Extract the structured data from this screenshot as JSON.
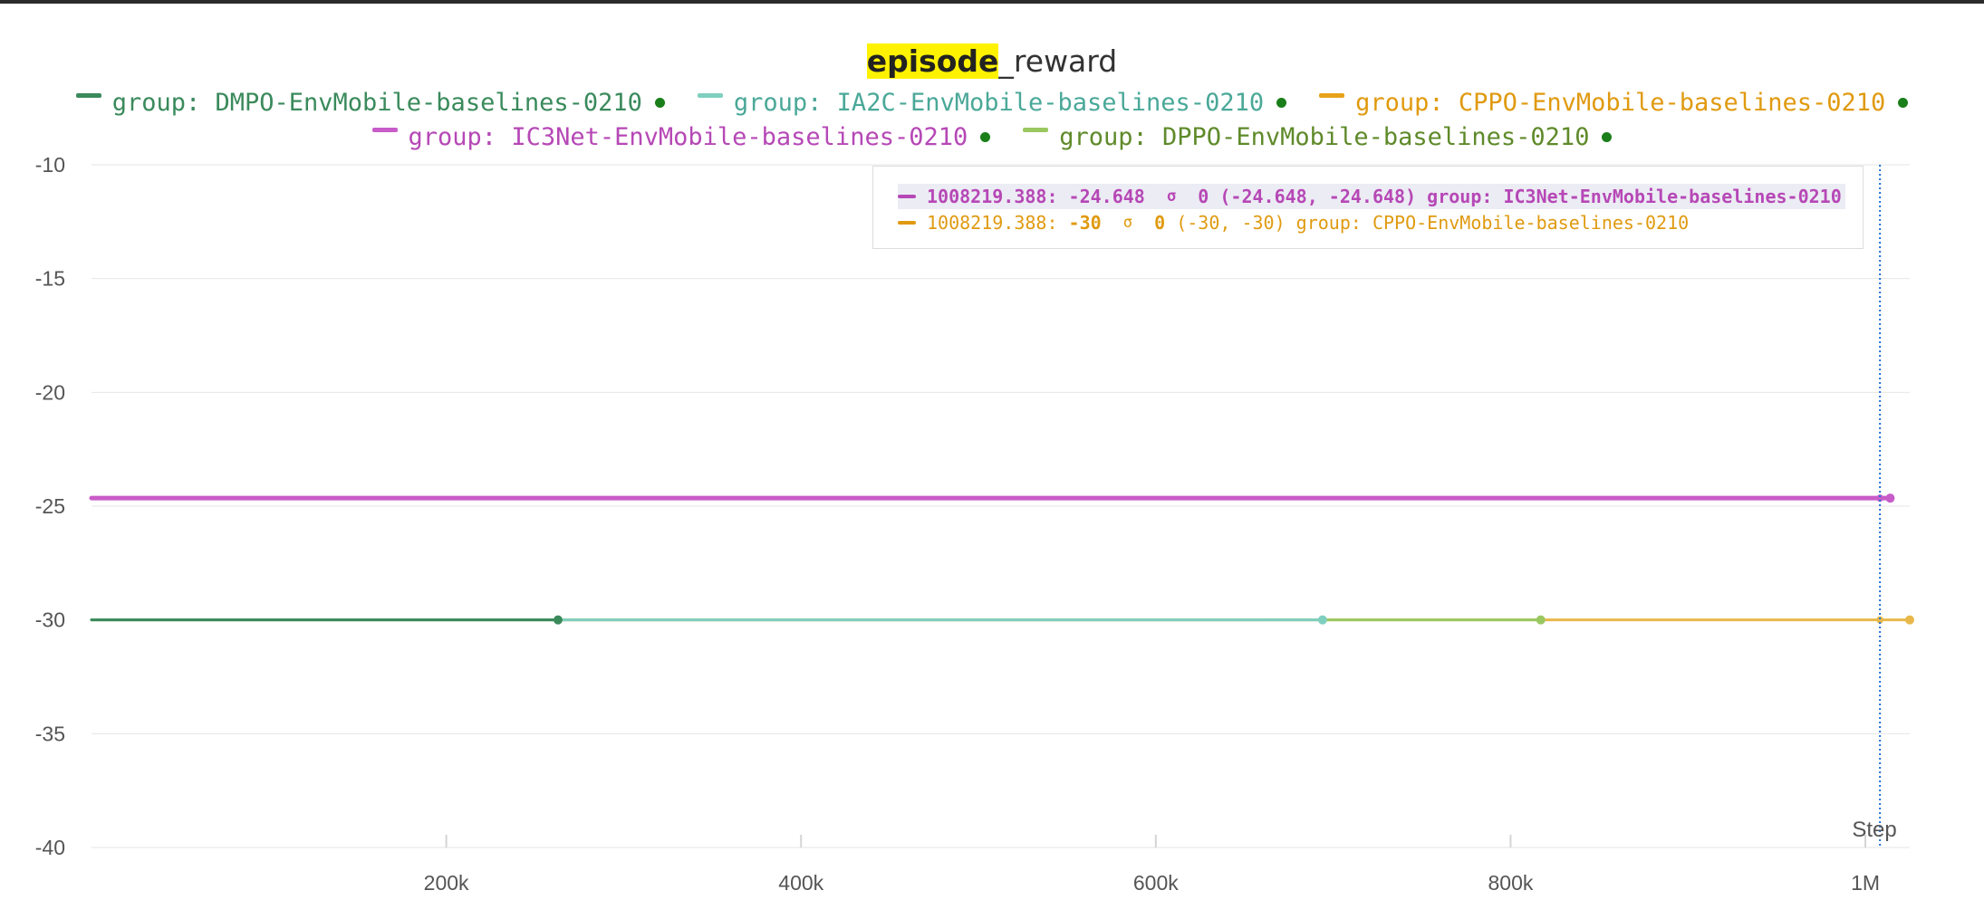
{
  "title": {
    "highlight": "episode",
    "rest": "_reward"
  },
  "legend": {
    "row1": [
      {
        "label": "group: DMPO-EnvMobile-baselines-0210",
        "color": "#3a8a5c"
      },
      {
        "label": "group: IA2C-EnvMobile-baselines-0210",
        "color": "#7fcfc0"
      },
      {
        "label": "group: CPPO-EnvMobile-baselines-0210",
        "color": "#e8a21a"
      }
    ],
    "row2": [
      {
        "label": "group: IC3Net-EnvMobile-baselines-0210",
        "color": "#c85cc8"
      },
      {
        "label": "group: DPPO-EnvMobile-baselines-0210",
        "color": "#9ac860"
      }
    ]
  },
  "tooltip": {
    "rows": [
      {
        "step": "1008219.388:",
        "value": "-24.648",
        "sigma": "σ",
        "sigma_value": "0",
        "range": "(-24.648, -24.648)",
        "group": "group: IC3Net-EnvMobile-baselines-0210",
        "color": "#b648b6",
        "highlighted": true
      },
      {
        "step": "1008219.388:",
        "value": "-30",
        "sigma": "σ",
        "sigma_value": "0",
        "range": "(-30, -30)",
        "group": "group: CPPO-EnvMobile-baselines-0210",
        "color": "#e09a10",
        "highlighted": false
      }
    ]
  },
  "axis": {
    "xlabel": "Step"
  },
  "chart_data": {
    "type": "line",
    "title": "episode_reward",
    "xlabel": "Step",
    "ylabel": "",
    "xlim": [
      0,
      1025000
    ],
    "ylim": [
      -40,
      -10
    ],
    "yticks": [
      -10,
      -15,
      -20,
      -25,
      -30,
      -35,
      -40
    ],
    "xticks": [
      {
        "value": 200000,
        "label": "200k"
      },
      {
        "value": 400000,
        "label": "400k"
      },
      {
        "value": 600000,
        "label": "600k"
      },
      {
        "value": 800000,
        "label": "800k"
      },
      {
        "value": 1000000,
        "label": "1M"
      }
    ],
    "grid": true,
    "hover_x": 1008219.388,
    "series": [
      {
        "name": "group: DMPO-EnvMobile-baselines-0210",
        "color": "#3a8a5c",
        "x": [
          0,
          263000
        ],
        "y": [
          -30,
          -30
        ]
      },
      {
        "name": "group: IA2C-EnvMobile-baselines-0210",
        "color": "#7fcfc0",
        "x": [
          0,
          694000
        ],
        "y": [
          -30,
          -30
        ]
      },
      {
        "name": "group: DPPO-EnvMobile-baselines-0210",
        "color": "#9ac860",
        "x": [
          0,
          817000
        ],
        "y": [
          -30,
          -30
        ]
      },
      {
        "name": "group: CPPO-EnvMobile-baselines-0210",
        "color": "#e8b84a",
        "x": [
          0,
          1025000
        ],
        "y": [
          -30,
          -30
        ]
      },
      {
        "name": "group: IC3Net-EnvMobile-baselines-0210",
        "color": "#c85cc8",
        "x": [
          0,
          1014000
        ],
        "y": [
          -24.648,
          -24.648
        ]
      }
    ]
  }
}
